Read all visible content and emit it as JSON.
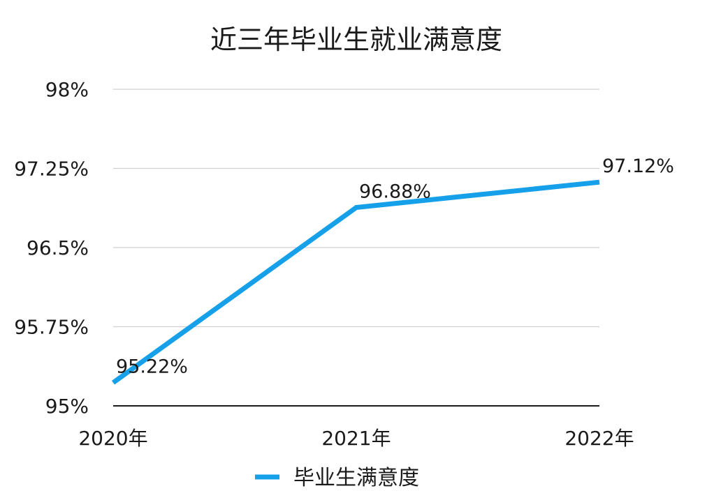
{
  "chart_data": {
    "type": "line",
    "title": "近三年毕业生就业满意度",
    "categories": [
      "2020年",
      "2021年",
      "2022年"
    ],
    "series": [
      {
        "name": "毕业生满意度",
        "values": [
          95.22,
          96.88,
          97.12
        ],
        "data_labels": [
          "95.22%",
          "96.88%",
          "97.12%"
        ],
        "color": "#16a0ea"
      }
    ],
    "y_ticks": [
      95,
      95.75,
      96.5,
      97.25,
      98
    ],
    "y_tick_labels": [
      "95%",
      "95.75%",
      "96.5%",
      "97.25%",
      "98%"
    ],
    "ylim": [
      95,
      98
    ],
    "grid": true,
    "legend": "bottom",
    "colors": {
      "line": "#16a0ea",
      "grid": "#d0d0d0",
      "axis": "#1a1a1a",
      "text": "#1a1a1a"
    }
  }
}
